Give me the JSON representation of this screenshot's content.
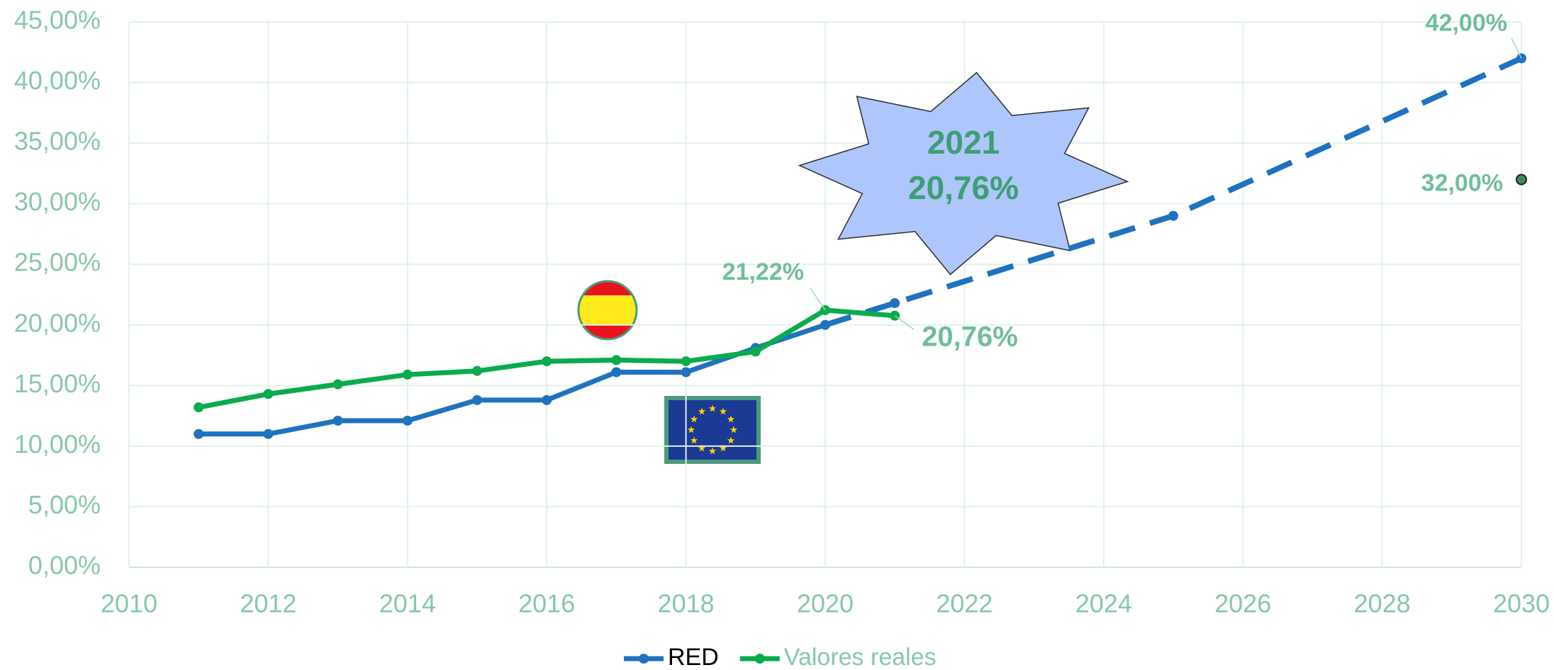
{
  "chart_data": {
    "type": "line",
    "x": [
      2011,
      2012,
      2013,
      2014,
      2015,
      2016,
      2017,
      2018,
      2019,
      2020,
      2021,
      2025,
      2030
    ],
    "series": [
      {
        "name": "RED",
        "color": "#1f72bf",
        "x": [
          2011,
          2012,
          2013,
          2014,
          2015,
          2016,
          2017,
          2018,
          2019,
          2020,
          2021,
          2025,
          2030
        ],
        "values": [
          11.0,
          11.0,
          12.1,
          12.1,
          13.8,
          13.8,
          16.1,
          16.1,
          18.1,
          20.0,
          21.8,
          29.0,
          42.0
        ],
        "value_labels": [
          null,
          null,
          null,
          null,
          null,
          null,
          null,
          null,
          null,
          null,
          null,
          null,
          "42,00%"
        ],
        "dash_start_x": 2020
      },
      {
        "name": "Valores reales",
        "color": "#0aab4c",
        "x": [
          2011,
          2012,
          2013,
          2014,
          2015,
          2016,
          2017,
          2018,
          2019,
          2020,
          2021
        ],
        "values": [
          13.2,
          14.3,
          15.1,
          15.9,
          16.2,
          17.0,
          17.1,
          17.0,
          17.8,
          21.22,
          20.76
        ],
        "value_labels": [
          null,
          null,
          null,
          null,
          null,
          null,
          null,
          null,
          null,
          "21,22%",
          "20,76%"
        ]
      }
    ],
    "target_points": [
      {
        "x": 2030,
        "value": 32.0,
        "label": "32,00%",
        "color": "#3c8a5e"
      }
    ],
    "annotation": {
      "lines": [
        "2021",
        "20,76%"
      ]
    },
    "xlim": [
      2010,
      2030
    ],
    "xticks": [
      2010,
      2012,
      2014,
      2016,
      2018,
      2020,
      2022,
      2024,
      2026,
      2028,
      2030
    ],
    "ylim": [
      0,
      45
    ],
    "yticks": [
      {
        "value": 0,
        "label": "0,00%"
      },
      {
        "value": 5,
        "label": "5,00%"
      },
      {
        "value": 10,
        "label": "10,00%"
      },
      {
        "value": 15,
        "label": "15,00%"
      },
      {
        "value": 20,
        "label": "20,00%"
      },
      {
        "value": 25,
        "label": "25,00%"
      },
      {
        "value": 30,
        "label": "30,00%"
      },
      {
        "value": 35,
        "label": "35,00%"
      },
      {
        "value": 40,
        "label": "40,00%"
      },
      {
        "value": 45,
        "label": "45,00%"
      }
    ],
    "grid": true,
    "legend": "bottom"
  }
}
